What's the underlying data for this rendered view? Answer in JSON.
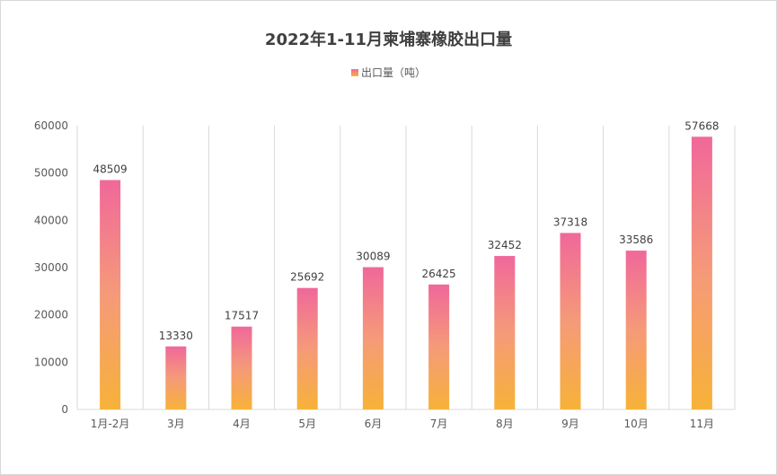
{
  "chart_data": {
    "type": "bar",
    "title": "2022年1-11月柬埔寨橡胶出口量",
    "categories": [
      "1月-2月",
      "3月",
      "4月",
      "5月",
      "6月",
      "7月",
      "8月",
      "9月",
      "10月",
      "11月"
    ],
    "series": [
      {
        "name": "出口量（吨）",
        "values": [
          48509,
          13330,
          17517,
          25692,
          30089,
          26425,
          32452,
          37318,
          33586,
          57668
        ]
      }
    ],
    "ylim": [
      0,
      60000
    ],
    "yticks": [
      0,
      10000,
      20000,
      30000,
      40000,
      50000,
      60000
    ],
    "xlabel": "",
    "ylabel": "",
    "grid": "vertical",
    "legend": "top-center",
    "colors": {
      "bar_top": "#f0689a",
      "bar_bottom": "#f7b239"
    }
  }
}
